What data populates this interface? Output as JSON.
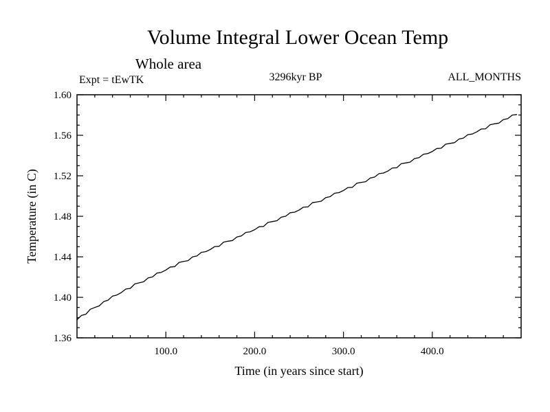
{
  "page": {
    "background": "#ffffff",
    "foreground": "#000000"
  },
  "header": {
    "title": "Volume Integral Lower Ocean Temp",
    "subtitle": "Whole area",
    "expt_label": "Expt = tEwTK",
    "time_label": "3296kyr BP",
    "months_label": "ALL_MONTHS"
  },
  "chart_data": {
    "type": "line",
    "title": "Volume Integral Lower Ocean Temp",
    "subtitle": "Whole area",
    "annotations": [
      "Expt = tEwTK",
      "3296kyr BP",
      "ALL_MONTHS"
    ],
    "xlabel": "Time (in years since start)",
    "ylabel": "Temperature (in C)",
    "xlim": [
      0,
      500
    ],
    "ylim": [
      1.36,
      1.6
    ],
    "x_ticks": [
      100,
      200,
      300,
      400
    ],
    "x_tick_labels": [
      "100.0",
      "200.0",
      "300.0",
      "400.0"
    ],
    "x_minor_step": 20,
    "y_ticks": [
      1.36,
      1.4,
      1.44,
      1.48,
      1.52,
      1.56,
      1.6
    ],
    "y_tick_labels": [
      "1.36",
      "1.40",
      "1.44",
      "1.48",
      "1.52",
      "1.56",
      "1.60"
    ],
    "y_minor_step": 0.01,
    "grid": false,
    "legend": "none",
    "line_color": "#000000",
    "x_start": 0,
    "x_step": 5,
    "values": [
      1.378,
      1.3821,
      1.3833,
      1.3883,
      1.39,
      1.3915,
      1.3957,
      1.3972,
      1.4012,
      1.4023,
      1.4048,
      1.4082,
      1.4088,
      1.4132,
      1.4143,
      1.4153,
      1.4191,
      1.4202,
      1.4239,
      1.4247,
      1.4269,
      1.43,
      1.4303,
      1.4345,
      1.4354,
      1.4362,
      1.4399,
      1.4408,
      1.4444,
      1.4451,
      1.4472,
      1.4501,
      1.4504,
      1.4545,
      1.4554,
      1.4561,
      1.4596,
      1.4606,
      1.4641,
      1.4647,
      1.4668,
      1.4697,
      1.47,
      1.474,
      1.4748,
      1.4756,
      1.4791,
      1.4801,
      1.4835,
      1.4841,
      1.4862,
      1.4891,
      1.4893,
      1.4934,
      1.4942,
      1.4949,
      1.4985,
      1.4994,
      1.5028,
      1.5034,
      1.5055,
      1.5084,
      1.5086,
      1.5127,
      1.5135,
      1.5142,
      1.5177,
      1.5187,
      1.5221,
      1.5227,
      1.5247,
      1.5277,
      1.5279,
      1.5319,
      1.5327,
      1.5335,
      1.537,
      1.5379,
      1.5413,
      1.542,
      1.544,
      1.5469,
      1.5472,
      1.5512,
      1.552,
      1.5527,
      1.5563,
      1.5572,
      1.5606,
      1.5612,
      1.5633,
      1.5662,
      1.5664,
      1.5704,
      1.5713,
      1.572,
      1.5755,
      1.5764,
      1.5799,
      1.5805
    ]
  }
}
